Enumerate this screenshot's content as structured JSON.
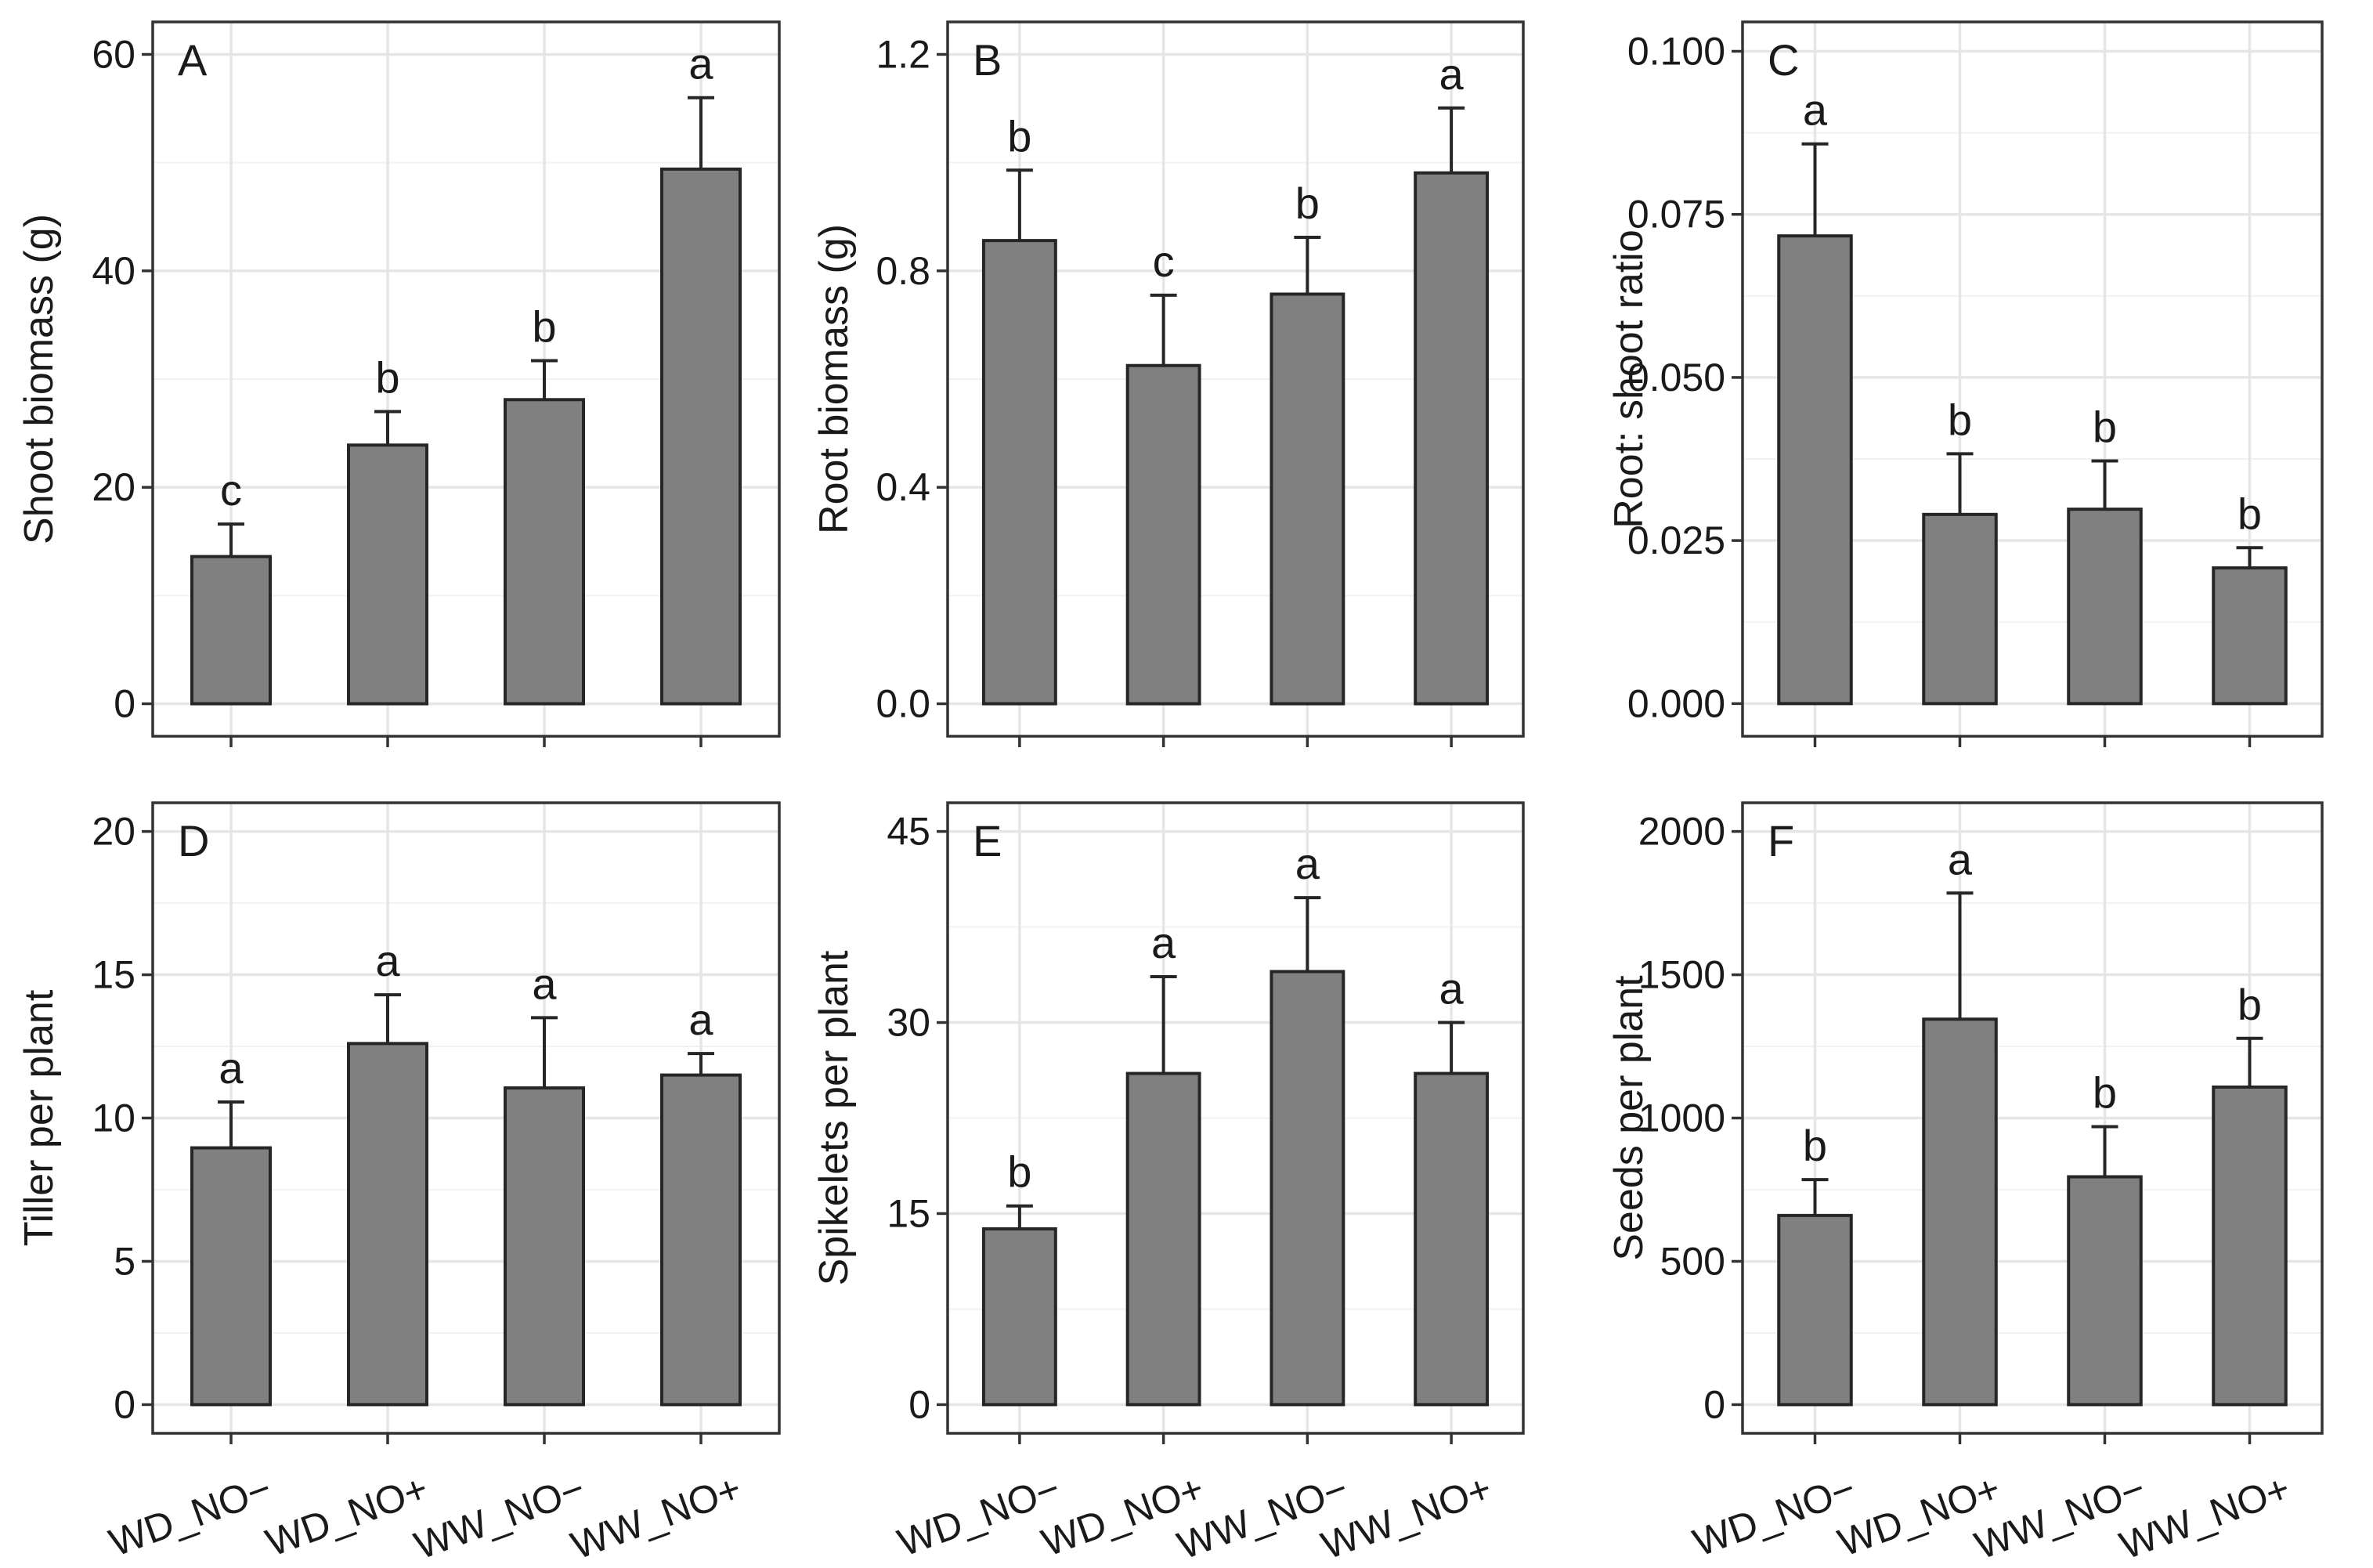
{
  "figure": {
    "categories": [
      "WD_NO−",
      "WD_NO+",
      "WW_NO−",
      "WW_NO+"
    ],
    "colors": {
      "bar_fill": "#808080",
      "bar_stroke": "#262626",
      "grid_major": "#e6e6e6",
      "grid_minor": "#f2f2f2",
      "frame": "#333333"
    }
  },
  "chart_data": [
    {
      "type": "bar",
      "panel": "A",
      "ylabel": "Shoot biomass (g)",
      "categories": [
        "WD_NO−",
        "WD_NO+",
        "WW_NO−",
        "WW_NO+"
      ],
      "values": [
        13.6,
        23.9,
        28.1,
        49.4
      ],
      "errors": [
        3.0,
        3.1,
        3.6,
        6.6
      ],
      "letters": [
        "c",
        "b",
        "b",
        "a"
      ],
      "ylim": [
        -3,
        63
      ],
      "yticks": [
        0,
        20,
        40,
        60
      ],
      "ytick_labels": [
        "0",
        "20",
        "40",
        "60"
      ],
      "show_x_labels": false
    },
    {
      "type": "bar",
      "panel": "B",
      "ylabel": "Root biomass (g)",
      "categories": [
        "WD_NO−",
        "WD_NO+",
        "WW_NO−",
        "WW_NO+"
      ],
      "values": [
        0.856,
        0.625,
        0.757,
        0.981
      ],
      "errors": [
        0.13,
        0.13,
        0.105,
        0.12
      ],
      "letters": [
        "b",
        "c",
        "b",
        "a"
      ],
      "ylim": [
        -0.06,
        1.26
      ],
      "yticks": [
        0.0,
        0.4,
        0.8,
        1.2
      ],
      "ytick_labels": [
        "0.0",
        "0.4",
        "0.8",
        "1.2"
      ],
      "show_x_labels": false
    },
    {
      "type": "bar",
      "panel": "C",
      "ylabel": "Root: shoot ratio",
      "categories": [
        "WD_NO−",
        "WD_NO+",
        "WW_NO−",
        "WW_NO+"
      ],
      "values": [
        0.0717,
        0.029,
        0.0298,
        0.0208
      ],
      "errors": [
        0.0141,
        0.0093,
        0.0074,
        0.0031
      ],
      "letters": [
        "a",
        "b",
        "b",
        "b"
      ],
      "ylim": [
        -0.005,
        0.1045
      ],
      "yticks": [
        0.0,
        0.025,
        0.05,
        0.075,
        0.1
      ],
      "ytick_labels": [
        "0.000",
        "0.025",
        "0.050",
        "0.075",
        "0.100"
      ],
      "show_x_labels": false
    },
    {
      "type": "bar",
      "panel": "D",
      "ylabel": "Tiller per plant",
      "categories": [
        "WD_NO−",
        "WD_NO+",
        "WW_NO−",
        "WW_NO+"
      ],
      "values": [
        8.96,
        12.6,
        11.05,
        11.5
      ],
      "errors": [
        1.6,
        1.7,
        2.45,
        0.75
      ],
      "letters": [
        "a",
        "a",
        "a",
        "a"
      ],
      "ylim": [
        -1,
        21
      ],
      "yticks": [
        0,
        5,
        10,
        15,
        20
      ],
      "ytick_labels": [
        "0",
        "5",
        "10",
        "15",
        "20"
      ],
      "show_x_labels": true
    },
    {
      "type": "bar",
      "panel": "E",
      "ylabel": "Spikelets per plant",
      "categories": [
        "WD_NO−",
        "WD_NO+",
        "WW_NO−",
        "WW_NO+"
      ],
      "values": [
        13.8,
        26.0,
        34.0,
        26.0
      ],
      "errors": [
        1.8,
        7.6,
        5.8,
        4.0
      ],
      "letters": [
        "b",
        "a",
        "a",
        "a"
      ],
      "ylim": [
        -2.25,
        47.25
      ],
      "yticks": [
        0,
        15,
        30,
        45
      ],
      "ytick_labels": [
        "0",
        "15",
        "30",
        "45"
      ],
      "show_x_labels": true
    },
    {
      "type": "bar",
      "panel": "F",
      "ylabel": "Seeds per plant",
      "categories": [
        "WD_NO−",
        "WD_NO+",
        "WW_NO−",
        "WW_NO+"
      ],
      "values": [
        660,
        1345,
        795,
        1108
      ],
      "errors": [
        125,
        440,
        175,
        170
      ],
      "letters": [
        "b",
        "a",
        "b",
        "b"
      ],
      "ylim": [
        -100,
        2100
      ],
      "yticks": [
        0,
        500,
        1000,
        1500,
        2000
      ],
      "ytick_labels": [
        "0",
        "500",
        "1000",
        "1500",
        "2000"
      ],
      "show_x_labels": true
    }
  ]
}
